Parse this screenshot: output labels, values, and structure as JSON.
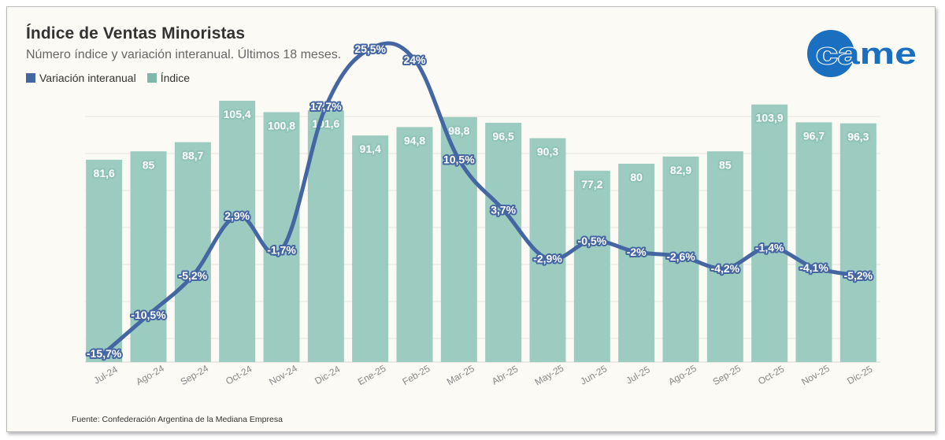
{
  "header": {
    "title": "Índice de Ventas Minoristas",
    "subtitle": "Número índice y variación interanual. Últimos 18 meses."
  },
  "legend": [
    {
      "label": "Variación interanual",
      "color": "#4466a3"
    },
    {
      "label": "Índice",
      "color": "#7fb8aa"
    }
  ],
  "logo": {
    "text": "came",
    "color": "#1b6fc0"
  },
  "source": "Fuente: Confederación Argentina de la Mediana Empresa",
  "chart_data": {
    "type": "bar",
    "categories": [
      "Jul-24",
      "Ago-24",
      "Sep-24",
      "Oct-24",
      "Nov-24",
      "Dic-24",
      "Ene-25",
      "Feb-25",
      "Mar-25",
      "Abr-25",
      "May-25",
      "Jun-25",
      "Jul-25",
      "Ago-25",
      "Sep-25",
      "Oct-25",
      "Nov-25",
      "Dic-25"
    ],
    "series": [
      {
        "name": "Índice",
        "kind": "bar",
        "color": "#9ccbc0",
        "values": [
          81.6,
          85,
          88.7,
          105.4,
          100.8,
          101.6,
          91.4,
          94.8,
          98.8,
          96.5,
          90.3,
          77.2,
          80,
          82.9,
          85,
          103.9,
          96.7,
          96.3
        ],
        "labels": [
          "81,6",
          "85",
          "88,7",
          "105,4",
          "100,8",
          "101,6",
          "91,4",
          "94,8",
          "98,8",
          "96,5",
          "90,3",
          "77,2",
          "80",
          "82,9",
          "85",
          "103,9",
          "96,7",
          "96,3"
        ]
      },
      {
        "name": "Variación interanual",
        "kind": "line",
        "color": "#4466a3",
        "values": [
          -15.7,
          -10.5,
          -5.2,
          2.9,
          -1.7,
          17.7,
          25.5,
          24,
          10.5,
          3.7,
          -2.9,
          -0.5,
          -2,
          -2.6,
          -4.2,
          -1.4,
          -4.1,
          -5.2
        ],
        "labels": [
          "-15,7%",
          "-10,5%",
          "-5,2%",
          "2,9%",
          "-1,7%",
          "17,7%",
          "25,5%",
          "24%",
          "10,5%",
          "3,7%",
          "-2,9%",
          "-0,5%",
          "-2%",
          "-2,6%",
          "-4,2%",
          "-1,4%",
          "-4,1%",
          "-5,2%"
        ]
      }
    ],
    "grid": true
  }
}
